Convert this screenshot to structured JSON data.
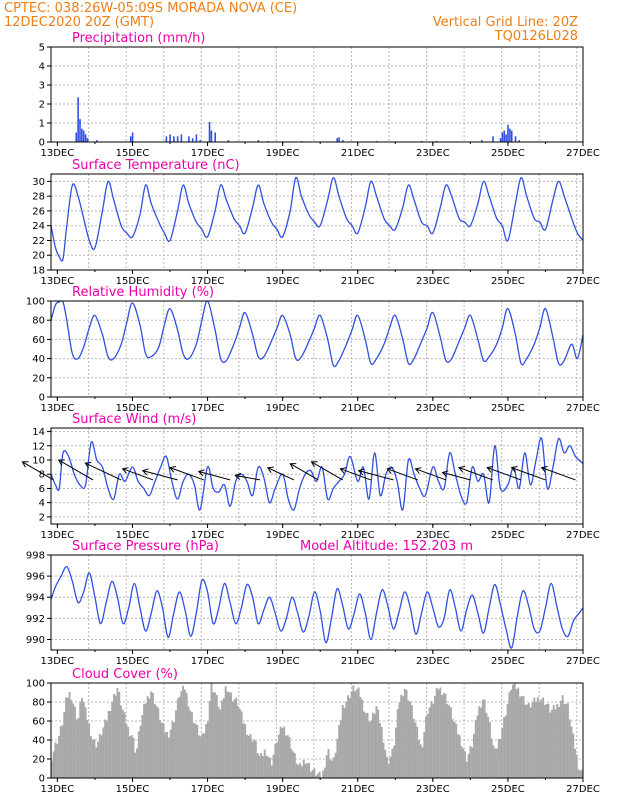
{
  "header": {
    "left_line1": "CPTEC:  038:26W-05:09S  MORADA NOVA (CE)",
    "left_line2": "12DEC2020 20Z (GMT)",
    "right_line1": "Vertical Grid Line: 20Z",
    "right_line2": "TQ0126L028"
  },
  "colors": {
    "header": "#ee7f14",
    "title": "#ee00aa",
    "line": "#3050e0",
    "bar": "#3050e0",
    "cloud": "#a8a8a8",
    "arrow": "#000000"
  },
  "chart_data": [
    {
      "id": "precipitation",
      "type": "bar",
      "title": "Precipitation (mm/h)",
      "ylim": [
        0,
        5
      ],
      "yticks": [
        0,
        1,
        2,
        3,
        4,
        5
      ],
      "xlim": [
        12.83,
        27
      ],
      "xticks": [
        "13DEC",
        "15DEC",
        "17DEC",
        "19DEC",
        "21DEC",
        "23DEC",
        "25DEC",
        "27DEC"
      ],
      "grid": true,
      "x": [
        13.5,
        13.55,
        13.6,
        13.65,
        13.7,
        13.75,
        13.8,
        14.05,
        14.95,
        15.0,
        15.9,
        16.0,
        16.1,
        16.2,
        16.3,
        16.5,
        16.6,
        16.7,
        16.8,
        17.05,
        17.1,
        17.2,
        17.55,
        18.35,
        18.6,
        19.5,
        20.45,
        20.5,
        20.6,
        21.5,
        22.7,
        23.1,
        24.3,
        24.6,
        24.8,
        24.85,
        24.9,
        24.95,
        25.0,
        25.05,
        25.1,
        25.2,
        25.3
      ],
      "values": [
        0.5,
        2.35,
        1.2,
        0.7,
        0.6,
        0.4,
        0.2,
        0.1,
        0.3,
        0.5,
        0.3,
        0.4,
        0.3,
        0.3,
        0.4,
        0.3,
        0.2,
        0.4,
        0.1,
        1.05,
        0.6,
        0.5,
        0.1,
        0.1,
        0.05,
        0.05,
        0.2,
        0.25,
        0.1,
        0.05,
        0.05,
        0.05,
        0.1,
        0.3,
        0.2,
        0.5,
        0.6,
        0.4,
        0.9,
        0.7,
        0.6,
        0.3,
        0.1
      ]
    },
    {
      "id": "temperature",
      "type": "line",
      "title": "Surface Temperature (nC)",
      "ylim": [
        18,
        31
      ],
      "yticks": [
        18,
        20,
        22,
        24,
        26,
        28,
        30
      ],
      "xlim": [
        12.83,
        27
      ],
      "xticks": [
        "13DEC",
        "15DEC",
        "17DEC",
        "19DEC",
        "21DEC",
        "23DEC",
        "25DEC",
        "27DEC"
      ],
      "grid": true,
      "x": [
        12.83,
        12.95,
        13.05,
        13.15,
        13.25,
        13.4,
        13.55,
        13.7,
        13.85,
        14.0,
        14.2,
        14.35,
        14.5,
        14.7,
        14.85,
        15.0,
        15.2,
        15.35,
        15.5,
        15.7,
        15.85,
        16.0,
        16.2,
        16.35,
        16.5,
        16.7,
        16.85,
        17.0,
        17.2,
        17.35,
        17.5,
        17.7,
        17.85,
        18.0,
        18.2,
        18.35,
        18.5,
        18.7,
        18.85,
        19.0,
        19.2,
        19.35,
        19.5,
        19.7,
        19.85,
        20.0,
        20.2,
        20.35,
        20.5,
        20.7,
        20.85,
        21.0,
        21.2,
        21.35,
        21.5,
        21.7,
        21.85,
        22.0,
        22.2,
        22.35,
        22.5,
        22.7,
        22.85,
        23.0,
        23.2,
        23.35,
        23.5,
        23.7,
        23.85,
        24.0,
        24.2,
        24.35,
        24.5,
        24.7,
        24.85,
        25.0,
        25.2,
        25.35,
        25.5,
        25.7,
        25.85,
        26.0,
        26.2,
        26.35,
        26.5,
        26.7,
        26.85,
        27.0
      ],
      "values": [
        24,
        21,
        19.8,
        19.5,
        24,
        29.5,
        28,
        25,
        22,
        21,
        26,
        30,
        27.5,
        24,
        23,
        22.5,
        25.5,
        29.5,
        27,
        24.5,
        23,
        22,
        26,
        29.5,
        27,
        24.5,
        23.5,
        22.5,
        26,
        29.5,
        27.5,
        25,
        24,
        23,
        26.5,
        29.5,
        27,
        24.5,
        23.5,
        22.5,
        26,
        30.5,
        28,
        25.5,
        24.5,
        24,
        27.5,
        30.5,
        28,
        25,
        24,
        23,
        26.5,
        30,
        28,
        25,
        24,
        23.5,
        26.5,
        29.5,
        27.5,
        24.5,
        24,
        23,
        26.5,
        29.5,
        28,
        25,
        24.5,
        24,
        27,
        30,
        28,
        25,
        24,
        22,
        27,
        30.5,
        28,
        25,
        24.5,
        23.5,
        27.5,
        30,
        28,
        25,
        23,
        22
      ]
    },
    {
      "id": "humidity",
      "type": "line",
      "title": "Relative Humidity (%)",
      "ylim": [
        0,
        100
      ],
      "yticks": [
        0,
        20,
        40,
        60,
        80,
        100
      ],
      "xlim": [
        12.83,
        27
      ],
      "xticks": [
        "13DEC",
        "15DEC",
        "17DEC",
        "19DEC",
        "21DEC",
        "23DEC",
        "25DEC",
        "27DEC"
      ],
      "grid": true,
      "x": [
        12.83,
        12.95,
        13.05,
        13.15,
        13.25,
        13.4,
        13.55,
        13.7,
        13.85,
        14.0,
        14.2,
        14.35,
        14.5,
        14.7,
        14.85,
        15.0,
        15.2,
        15.35,
        15.5,
        15.7,
        15.85,
        16.0,
        16.2,
        16.35,
        16.5,
        16.7,
        16.85,
        17.0,
        17.2,
        17.35,
        17.5,
        17.7,
        17.85,
        18.0,
        18.2,
        18.35,
        18.5,
        18.7,
        18.85,
        19.0,
        19.2,
        19.35,
        19.5,
        19.7,
        19.85,
        20.0,
        20.2,
        20.35,
        20.5,
        20.7,
        20.85,
        21.0,
        21.2,
        21.35,
        21.5,
        21.7,
        21.85,
        22.0,
        22.2,
        22.35,
        22.5,
        22.7,
        22.85,
        23.0,
        23.2,
        23.35,
        23.5,
        23.7,
        23.85,
        24.0,
        24.2,
        24.35,
        24.5,
        24.7,
        24.85,
        25.0,
        25.2,
        25.35,
        25.5,
        25.7,
        25.85,
        26.0,
        26.2,
        26.35,
        26.5,
        26.7,
        26.85,
        27.0
      ],
      "values": [
        80,
        96,
        99,
        99,
        80,
        45,
        40,
        52,
        72,
        85,
        65,
        42,
        40,
        55,
        78,
        98,
        75,
        45,
        42,
        52,
        75,
        92,
        70,
        45,
        40,
        55,
        80,
        100,
        70,
        40,
        38,
        55,
        72,
        88,
        65,
        42,
        42,
        58,
        72,
        85,
        65,
        40,
        42,
        58,
        72,
        85,
        60,
        33,
        38,
        55,
        70,
        85,
        60,
        35,
        40,
        55,
        72,
        85,
        60,
        35,
        40,
        58,
        72,
        88,
        62,
        38,
        40,
        58,
        72,
        85,
        60,
        38,
        42,
        55,
        72,
        92,
        65,
        35,
        40,
        55,
        72,
        92,
        62,
        35,
        38,
        55,
        40,
        65
      ]
    },
    {
      "id": "wind",
      "type": "line",
      "title": "Surface Wind (m/s)",
      "ylim": [
        1,
        14.5
      ],
      "yticks": [
        2,
        4,
        6,
        8,
        10,
        12,
        14
      ],
      "xlim": [
        12.83,
        27
      ],
      "xticks": [
        "13DEC",
        "15DEC",
        "17DEC",
        "19DEC",
        "21DEC",
        "23DEC",
        "25DEC",
        "27DEC"
      ],
      "grid": true,
      "x": [
        12.83,
        12.95,
        13.05,
        13.15,
        13.3,
        13.45,
        13.6,
        13.75,
        13.9,
        14.05,
        14.2,
        14.35,
        14.5,
        14.65,
        14.8,
        15.0,
        15.15,
        15.3,
        15.45,
        15.6,
        15.75,
        15.9,
        16.05,
        16.2,
        16.35,
        16.5,
        16.65,
        16.8,
        17.0,
        17.15,
        17.3,
        17.45,
        17.6,
        17.75,
        17.9,
        18.05,
        18.2,
        18.35,
        18.5,
        18.65,
        18.8,
        19.0,
        19.15,
        19.3,
        19.45,
        19.6,
        19.75,
        19.9,
        20.05,
        20.2,
        20.35,
        20.5,
        20.65,
        20.8,
        21.0,
        21.15,
        21.3,
        21.45,
        21.6,
        21.75,
        21.9,
        22.05,
        22.2,
        22.35,
        22.5,
        22.65,
        22.8,
        23.0,
        23.15,
        23.3,
        23.45,
        23.6,
        23.75,
        23.9,
        24.05,
        24.2,
        24.35,
        24.5,
        24.65,
        24.8,
        25.0,
        25.15,
        25.3,
        25.45,
        25.6,
        25.75,
        25.9,
        26.05,
        26.2,
        26.35,
        26.5,
        26.65,
        26.8,
        27.0
      ],
      "values": [
        8,
        6.5,
        6,
        11,
        10.5,
        8,
        6.5,
        6.5,
        12.5,
        10,
        9,
        6,
        4.5,
        8,
        7,
        9,
        7,
        6,
        5,
        7,
        9,
        10.5,
        7,
        4.5,
        7,
        8,
        6.5,
        3,
        9,
        6,
        5.5,
        6.5,
        3.5,
        7,
        8,
        7,
        5,
        9,
        7.5,
        4,
        6,
        8,
        4.5,
        3,
        6,
        8,
        8.5,
        7,
        9,
        4.5,
        6,
        7,
        8,
        10.5,
        7,
        9,
        4.5,
        11,
        5,
        8,
        9,
        7,
        3,
        10,
        8,
        6,
        5,
        9,
        7,
        6,
        11,
        8,
        5,
        4,
        9,
        7,
        8,
        4,
        12,
        6,
        6.5,
        9,
        6,
        11,
        6.5,
        10,
        13,
        6,
        9,
        13,
        11,
        12,
        10.5,
        9.5
      ],
      "barbs": [
        {
          "x": 12.9,
          "speed": 10,
          "dir_deg": 150
        },
        {
          "x": 13.95,
          "speed": 11,
          "dir_deg": 150
        },
        {
          "x": 14.7,
          "speed": 11,
          "dir_deg": 155
        },
        {
          "x": 15.55,
          "speed": 9,
          "dir_deg": 160
        },
        {
          "x": 16.2,
          "speed": 10,
          "dir_deg": 165
        },
        {
          "x": 16.9,
          "speed": 10,
          "dir_deg": 160
        },
        {
          "x": 17.6,
          "speed": 9,
          "dir_deg": 165
        },
        {
          "x": 18.4,
          "speed": 7,
          "dir_deg": 170
        },
        {
          "x": 19.3,
          "speed": 8,
          "dir_deg": 155
        },
        {
          "x": 19.95,
          "speed": 9,
          "dir_deg": 150
        },
        {
          "x": 20.6,
          "speed": 10,
          "dir_deg": 150
        },
        {
          "x": 21.35,
          "speed": 9,
          "dir_deg": 160
        },
        {
          "x": 21.95,
          "speed": 10,
          "dir_deg": 165
        },
        {
          "x": 22.6,
          "speed": 9,
          "dir_deg": 160
        },
        {
          "x": 23.35,
          "speed": 9,
          "dir_deg": 160
        },
        {
          "x": 24.0,
          "speed": 8,
          "dir_deg": 165
        },
        {
          "x": 24.6,
          "speed": 10,
          "dir_deg": 160
        },
        {
          "x": 25.35,
          "speed": 10,
          "dir_deg": 160
        },
        {
          "x": 26.0,
          "speed": 10,
          "dir_deg": 160
        },
        {
          "x": 26.8,
          "speed": 10,
          "dir_deg": 160
        }
      ]
    },
    {
      "id": "pressure",
      "type": "line",
      "title": "Surface Pressure (hPa)",
      "subtitle": "Model Altitude: 152.203 m",
      "ylim": [
        989,
        998
      ],
      "yticks": [
        990,
        992,
        994,
        996,
        998
      ],
      "xlim": [
        12.83,
        27
      ],
      "xticks": [
        "13DEC",
        "15DEC",
        "17DEC",
        "19DEC",
        "21DEC",
        "23DEC",
        "25DEC",
        "27DEC"
      ],
      "grid": true,
      "x": [
        12.83,
        12.95,
        13.1,
        13.25,
        13.4,
        13.55,
        13.7,
        13.85,
        14.0,
        14.15,
        14.3,
        14.45,
        14.6,
        14.75,
        14.9,
        15.05,
        15.2,
        15.35,
        15.5,
        15.65,
        15.8,
        15.95,
        16.1,
        16.25,
        16.4,
        16.55,
        16.7,
        16.85,
        17.0,
        17.15,
        17.3,
        17.45,
        17.6,
        17.75,
        17.9,
        18.05,
        18.2,
        18.35,
        18.5,
        18.65,
        18.8,
        18.95,
        19.1,
        19.25,
        19.4,
        19.55,
        19.7,
        19.85,
        20.0,
        20.15,
        20.3,
        20.45,
        20.6,
        20.75,
        20.9,
        21.05,
        21.2,
        21.35,
        21.5,
        21.65,
        21.8,
        21.95,
        22.1,
        22.25,
        22.4,
        22.55,
        22.7,
        22.85,
        23.0,
        23.15,
        23.3,
        23.45,
        23.6,
        23.75,
        23.9,
        24.05,
        24.2,
        24.35,
        24.5,
        24.65,
        24.8,
        24.95,
        25.1,
        25.25,
        25.4,
        25.55,
        25.7,
        25.85,
        26.0,
        26.15,
        26.3,
        26.45,
        26.6,
        26.75,
        26.9,
        27.0
      ],
      "values": [
        993.8,
        995,
        996,
        996.9,
        995.5,
        993.5,
        994.5,
        996.3,
        994,
        991.5,
        993.5,
        995.5,
        994,
        991.5,
        993,
        995.3,
        993,
        990.8,
        992.5,
        994.6,
        993,
        990.2,
        992.5,
        994.5,
        992.8,
        990.3,
        992.5,
        995.6,
        994.5,
        991.5,
        993,
        995.3,
        993.5,
        991.5,
        993,
        995.2,
        994,
        991.5,
        992.8,
        994,
        992.5,
        990.8,
        992,
        994,
        992.5,
        990.7,
        992.2,
        994.5,
        992.7,
        989.7,
        992,
        994.8,
        993.2,
        991,
        992.4,
        994.3,
        992.5,
        990,
        992.5,
        994.7,
        993.2,
        991,
        992.6,
        994.5,
        993,
        990.5,
        992.5,
        994.5,
        993,
        991.2,
        992,
        994.7,
        993,
        990.8,
        992.8,
        994.2,
        992.5,
        990.6,
        993,
        995.2,
        993.3,
        991,
        989.2,
        992.2,
        994.6,
        993.2,
        991,
        990.8,
        993,
        995.3,
        993.2,
        991,
        990.3,
        991.8,
        992.5,
        993
      ]
    },
    {
      "id": "cloud_cover",
      "type": "area",
      "title": "Cloud Cover (%)",
      "ylim": [
        0,
        100
      ],
      "yticks": [
        0,
        20,
        40,
        60,
        80,
        100
      ],
      "xlim": [
        12.83,
        27
      ],
      "xticks": [
        "13DEC",
        "15DEC",
        "17DEC",
        "19DEC",
        "21DEC",
        "23DEC",
        "25DEC",
        "27DEC"
      ],
      "grid": true,
      "x": [
        12.83,
        12.95,
        13.05,
        13.15,
        13.25,
        13.35,
        13.45,
        13.55,
        13.65,
        13.75,
        13.85,
        13.95,
        14.05,
        14.15,
        14.3,
        14.45,
        14.6,
        14.75,
        14.9,
        15.0,
        15.1,
        15.2,
        15.35,
        15.5,
        15.65,
        15.8,
        15.95,
        16.1,
        16.25,
        16.4,
        16.55,
        16.7,
        16.85,
        17.0,
        17.1,
        17.2,
        17.35,
        17.5,
        17.65,
        17.8,
        17.95,
        18.1,
        18.25,
        18.4,
        18.55,
        18.7,
        18.85,
        19.0,
        19.15,
        19.3,
        19.45,
        19.6,
        19.75,
        19.9,
        20.05,
        20.2,
        20.35,
        20.5,
        20.6,
        20.75,
        20.9,
        21.05,
        21.2,
        21.35,
        21.5,
        21.65,
        21.8,
        21.95,
        22.1,
        22.25,
        22.4,
        22.55,
        22.7,
        22.85,
        23.0,
        23.15,
        23.3,
        23.45,
        23.6,
        23.75,
        23.9,
        24.05,
        24.2,
        24.35,
        24.5,
        24.65,
        24.8,
        24.95,
        25.1,
        25.25,
        25.4,
        25.55,
        25.7,
        25.85,
        26.0,
        26.15,
        26.3,
        26.45,
        26.6,
        26.75,
        26.9,
        27.0
      ],
      "values": [
        20,
        35,
        45,
        60,
        85,
        90,
        75,
        60,
        88,
        70,
        55,
        40,
        35,
        45,
        60,
        80,
        95,
        70,
        50,
        45,
        25,
        55,
        80,
        92,
        75,
        55,
        45,
        60,
        88,
        95,
        70,
        55,
        40,
        60,
        98,
        90,
        70,
        98,
        85,
        80,
        60,
        45,
        40,
        20,
        30,
        15,
        40,
        55,
        45,
        25,
        10,
        20,
        10,
        5,
        0,
        30,
        15,
        50,
        75,
        85,
        95,
        90,
        70,
        60,
        75,
        50,
        15,
        30,
        80,
        95,
        80,
        55,
        30,
        70,
        80,
        95,
        90,
        75,
        55,
        40,
        20,
        35,
        70,
        85,
        60,
        25,
        45,
        70,
        98,
        95,
        85,
        75,
        80,
        85,
        80,
        70,
        75,
        85,
        75,
        40,
        10,
        5
      ]
    }
  ]
}
